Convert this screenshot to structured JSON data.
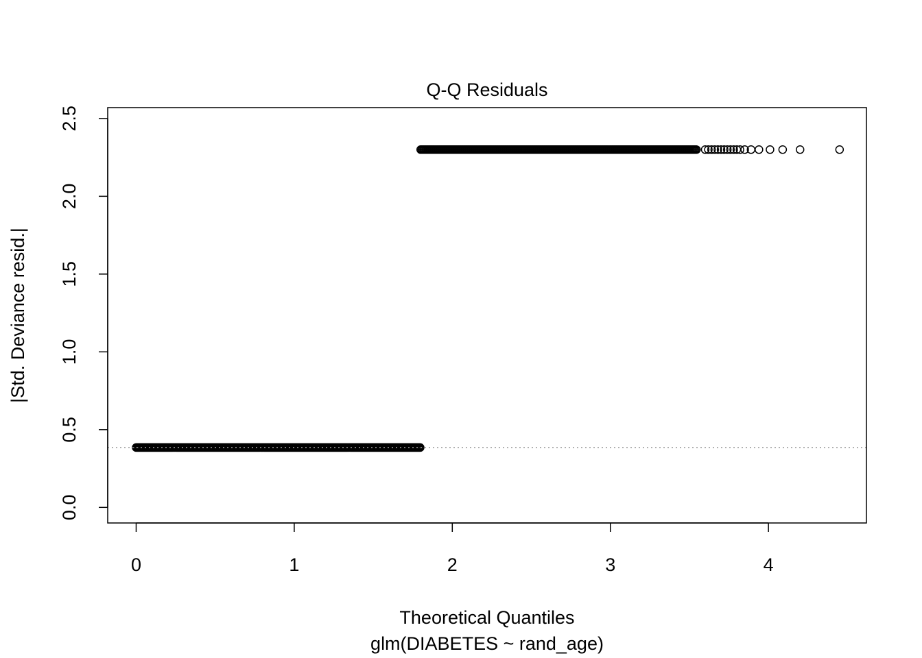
{
  "chart_data": {
    "type": "scatter",
    "title": "Q-Q Residuals",
    "xlabel": "Theoretical Quantiles",
    "subtitle": "glm(DIABETES ~ rand_age)",
    "ylabel": "|Std. Deviance resid.|",
    "xlim": [
      -0.18,
      4.62
    ],
    "ylim": [
      -0.1,
      2.57
    ],
    "x_ticks": [
      0,
      1,
      2,
      3,
      4
    ],
    "y_ticks": [
      0.0,
      0.5,
      1.0,
      1.5,
      2.0,
      2.5
    ],
    "x_tick_labels": [
      "0",
      "1",
      "2",
      "3",
      "4"
    ],
    "y_tick_labels": [
      "0.0",
      "0.5",
      "1.0",
      "1.5",
      "2.0",
      "2.5"
    ],
    "grid": false,
    "reference_line": {
      "y": 0.385,
      "style": "dotted",
      "color": "#999999"
    },
    "series": [
      {
        "marker": "open-circle",
        "color": "#000000",
        "dense_segments": [
          {
            "x_from": 0.0,
            "x_to": 1.8,
            "y": 0.385
          },
          {
            "x_from": 1.8,
            "x_to": 3.55,
            "y": 2.3
          }
        ],
        "points": [
          {
            "x": 3.6,
            "y": 2.3
          },
          {
            "x": 3.62,
            "y": 2.3
          },
          {
            "x": 3.64,
            "y": 2.3
          },
          {
            "x": 3.66,
            "y": 2.3
          },
          {
            "x": 3.68,
            "y": 2.3
          },
          {
            "x": 3.7,
            "y": 2.3
          },
          {
            "x": 3.72,
            "y": 2.3
          },
          {
            "x": 3.74,
            "y": 2.3
          },
          {
            "x": 3.76,
            "y": 2.3
          },
          {
            "x": 3.78,
            "y": 2.3
          },
          {
            "x": 3.8,
            "y": 2.3
          },
          {
            "x": 3.82,
            "y": 2.3
          },
          {
            "x": 3.85,
            "y": 2.3
          },
          {
            "x": 3.89,
            "y": 2.3
          },
          {
            "x": 3.94,
            "y": 2.3
          },
          {
            "x": 4.01,
            "y": 2.3
          },
          {
            "x": 4.09,
            "y": 2.3
          },
          {
            "x": 4.2,
            "y": 2.3
          },
          {
            "x": 4.45,
            "y": 2.3
          }
        ]
      }
    ]
  }
}
